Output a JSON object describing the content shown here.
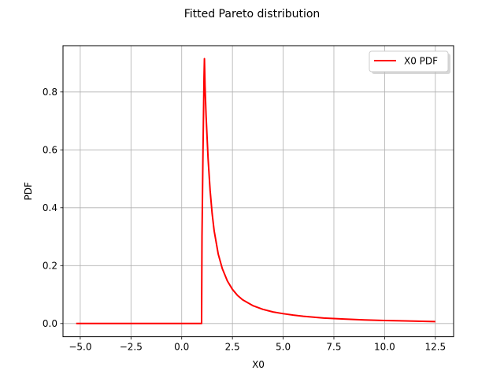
{
  "chart_data": {
    "type": "line",
    "title": "Fitted Pareto distribution",
    "xlabel": "X0",
    "ylabel": "PDF",
    "xlim": [
      -5.85,
      13.4
    ],
    "ylim": [
      -0.0457,
      0.96
    ],
    "xticks": [
      -5.0,
      -2.5,
      0.0,
      2.5,
      5.0,
      7.5,
      10.0,
      12.5
    ],
    "xtick_labels": [
      "−5.0",
      "−2.5",
      "0.0",
      "2.5",
      "5.0",
      "7.5",
      "10.0",
      "12.5"
    ],
    "yticks": [
      0.0,
      0.2,
      0.4,
      0.6,
      0.8
    ],
    "ytick_labels": [
      "0.0",
      "0.2",
      "0.4",
      "0.6",
      "0.8"
    ],
    "grid": true,
    "legend_position": "top-right",
    "series": [
      {
        "name": "X0 PDF",
        "color": "#ff0000",
        "x": [
          -5.2,
          0.98,
          1.0,
          1.05,
          1.1,
          1.12,
          1.15,
          1.2,
          1.3,
          1.4,
          1.5,
          1.6,
          1.8,
          2.0,
          2.25,
          2.5,
          2.75,
          3.0,
          3.5,
          4.0,
          4.5,
          5.0,
          5.5,
          6.0,
          7.0,
          8.0,
          9.0,
          10.0,
          11.0,
          12.5
        ],
        "y": [
          0.0,
          0.0,
          0.3,
          0.6,
          0.85,
          0.915,
          0.82,
          0.72,
          0.57,
          0.46,
          0.38,
          0.32,
          0.24,
          0.19,
          0.147,
          0.118,
          0.097,
          0.082,
          0.062,
          0.049,
          0.04,
          0.034,
          0.029,
          0.025,
          0.019,
          0.0155,
          0.0125,
          0.0105,
          0.009,
          0.0065
        ]
      }
    ]
  }
}
